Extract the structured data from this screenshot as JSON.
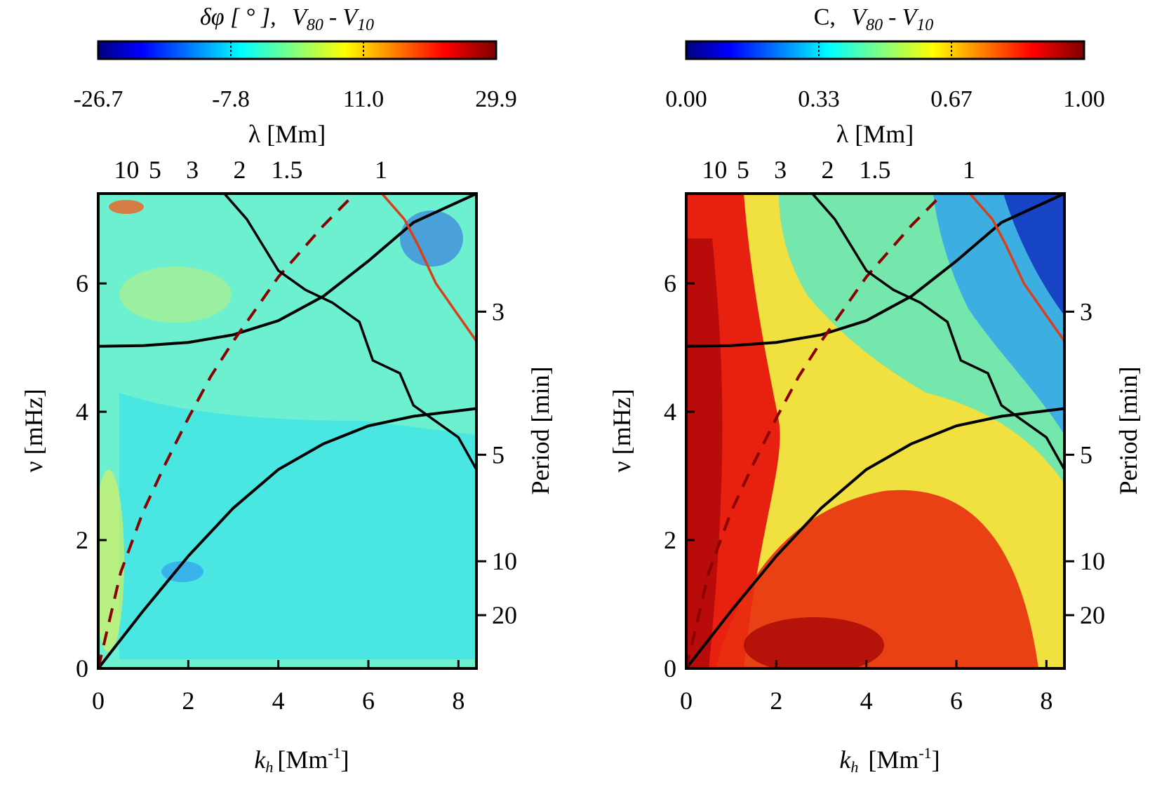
{
  "chart_data": [
    {
      "type": "heatmap",
      "panel": "left",
      "colorbar": {
        "title_prefix": "δφ [ ° ],",
        "title_v": "V",
        "title_sub_a": "80",
        "title_dash": "-",
        "title_sub_b": "10",
        "tick_labels": [
          "-26.7",
          "-7.8",
          "11.0",
          "29.9"
        ],
        "range": [
          -26.7,
          29.9
        ],
        "colormap": "jet"
      },
      "xlabel_main": "k",
      "xlabel_sub": "h",
      "xlabel_unit": "[Mm",
      "xlabel_sup": "-1",
      "xlabel_close": "]",
      "xlim": [
        0,
        8.4
      ],
      "x_ticks": [
        "0",
        "2",
        "4",
        "6",
        "8"
      ],
      "ylabel": "ν [mHz]",
      "ylim": [
        0,
        7.4
      ],
      "y_ticks": [
        "0",
        "2",
        "4",
        "6"
      ],
      "top_axis_label": "λ [Mm]",
      "top_ticks": [
        {
          "label": "10",
          "k": 0.63
        },
        {
          "label": "5",
          "k": 1.26
        },
        {
          "label": "3",
          "k": 2.09
        },
        {
          "label": "2",
          "k": 3.14
        },
        {
          "label": "1.5",
          "k": 4.19
        },
        {
          "label": "1",
          "k": 6.28
        }
      ],
      "right_axis_label": "Period [min]",
      "right_ticks": [
        {
          "label": "3",
          "nu": 5.56
        },
        {
          "label": "5",
          "nu": 3.33
        },
        {
          "label": "10",
          "nu": 1.67
        },
        {
          "label": "20",
          "nu": 0.83
        }
      ],
      "curves": [
        {
          "name": "acoustic cutoff dispersion",
          "style": "solid black",
          "points": [
            [
              0,
              5.02
            ],
            [
              1,
              5.03
            ],
            [
              2,
              5.08
            ],
            [
              3,
              5.2
            ],
            [
              4,
              5.42
            ],
            [
              5,
              5.8
            ],
            [
              6,
              6.35
            ],
            [
              7,
              6.95
            ],
            [
              8.4,
              7.4
            ]
          ]
        },
        {
          "name": "gravity wave dispersion",
          "style": "solid black",
          "points": [
            [
              0,
              0
            ],
            [
              1,
              0.9
            ],
            [
              2,
              1.75
            ],
            [
              3,
              2.5
            ],
            [
              4,
              3.1
            ],
            [
              5,
              3.5
            ],
            [
              6,
              3.78
            ],
            [
              7,
              3.93
            ],
            [
              8.4,
              4.05
            ]
          ]
        },
        {
          "name": "lamb line",
          "style": "dashed darkred",
          "points": [
            [
              0,
              0
            ],
            [
              0.5,
              1.5
            ],
            [
              1,
              2.45
            ],
            [
              1.5,
              3.2
            ],
            [
              2,
              3.9
            ],
            [
              2.5,
              4.55
            ],
            [
              3,
              5.1
            ],
            [
              3.5,
              5.6
            ],
            [
              4,
              6.1
            ],
            [
              5,
              6.9
            ],
            [
              5.7,
              7.4
            ]
          ]
        }
      ]
    },
    {
      "type": "heatmap",
      "panel": "right",
      "colorbar": {
        "title_prefix": "C,",
        "title_v": "V",
        "title_sub_a": "80",
        "title_dash": "-",
        "title_sub_b": "10",
        "tick_labels": [
          "0.00",
          "0.33",
          "0.67",
          "1.00"
        ],
        "range": [
          0,
          1
        ],
        "colormap": "jet"
      },
      "xlabel_main": "k",
      "xlabel_sub": "h",
      "xlabel_unit": "[Mm",
      "xlabel_sup": "-1",
      "xlabel_close": "]",
      "xlim": [
        0,
        8.4
      ],
      "x_ticks": [
        "0",
        "2",
        "4",
        "6",
        "8"
      ],
      "ylabel": "ν [mHz]",
      "ylim": [
        0,
        7.4
      ],
      "y_ticks": [
        "0",
        "2",
        "4",
        "6"
      ],
      "top_axis_label": "λ [Mm]",
      "top_ticks": [
        {
          "label": "10",
          "k": 0.63
        },
        {
          "label": "5",
          "k": 1.26
        },
        {
          "label": "3",
          "k": 2.09
        },
        {
          "label": "2",
          "k": 3.14
        },
        {
          "label": "1.5",
          "k": 4.19
        },
        {
          "label": "1",
          "k": 6.28
        }
      ],
      "right_axis_label": "Period [min]",
      "right_ticks": [
        {
          "label": "3",
          "nu": 5.56
        },
        {
          "label": "5",
          "nu": 3.33
        },
        {
          "label": "10",
          "nu": 1.67
        },
        {
          "label": "20",
          "nu": 0.83
        }
      ],
      "curves": [
        {
          "name": "acoustic cutoff dispersion",
          "style": "solid black",
          "points": [
            [
              0,
              5.02
            ],
            [
              1,
              5.03
            ],
            [
              2,
              5.08
            ],
            [
              3,
              5.2
            ],
            [
              4,
              5.42
            ],
            [
              5,
              5.8
            ],
            [
              6,
              6.35
            ],
            [
              7,
              6.95
            ],
            [
              8.4,
              7.4
            ]
          ]
        },
        {
          "name": "gravity wave dispersion",
          "style": "solid black",
          "points": [
            [
              0,
              0
            ],
            [
              1,
              0.9
            ],
            [
              2,
              1.75
            ],
            [
              3,
              2.5
            ],
            [
              4,
              3.1
            ],
            [
              5,
              3.5
            ],
            [
              6,
              3.78
            ],
            [
              7,
              3.93
            ],
            [
              8.4,
              4.05
            ]
          ]
        },
        {
          "name": "lamb line",
          "style": "dashed darkred",
          "points": [
            [
              0,
              0
            ],
            [
              0.5,
              1.5
            ],
            [
              1,
              2.45
            ],
            [
              1.5,
              3.2
            ],
            [
              2,
              3.9
            ],
            [
              2.5,
              4.55
            ],
            [
              3,
              5.1
            ],
            [
              3.5,
              5.6
            ],
            [
              4,
              6.1
            ],
            [
              5,
              6.9
            ],
            [
              5.7,
              7.4
            ]
          ]
        }
      ]
    }
  ],
  "contours": {
    "coherence_threshold_black": [
      [
        2.8,
        7.4
      ],
      [
        3.3,
        7.0
      ],
      [
        4.0,
        6.2
      ],
      [
        4.6,
        5.9
      ],
      [
        5.2,
        5.7
      ],
      [
        5.8,
        5.4
      ],
      [
        6.1,
        4.8
      ],
      [
        6.7,
        4.6
      ],
      [
        7.0,
        4.1
      ],
      [
        7.4,
        3.9
      ],
      [
        8.0,
        3.6
      ],
      [
        8.4,
        3.1
      ]
    ],
    "coherence_threshold_red": [
      [
        6.3,
        7.4
      ],
      [
        6.8,
        7.0
      ],
      [
        7.1,
        6.6
      ],
      [
        7.5,
        6.0
      ],
      [
        7.9,
        5.6
      ],
      [
        8.4,
        5.1
      ]
    ]
  },
  "colors": {
    "lamb_line": "#8b0000",
    "contour_black": "#000000",
    "contour_red": "#d6401a"
  }
}
